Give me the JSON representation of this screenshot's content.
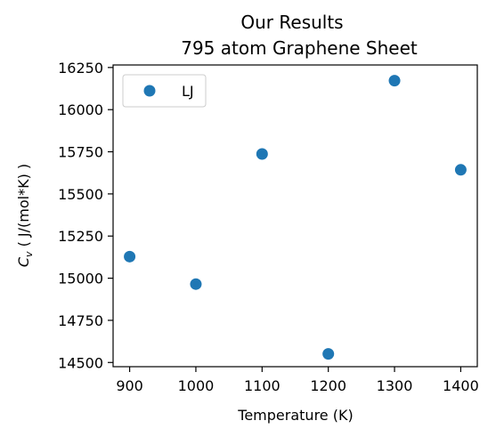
{
  "chart_data": {
    "type": "scatter",
    "title": "Our Results",
    "subtitle": "795 atom Graphene Sheet",
    "xlabel": "Temperature (K)",
    "ylabel": "C_v ( J/(mol*K) )",
    "xlim": [
      875,
      1425
    ],
    "ylim": [
      14475,
      16265
    ],
    "xticks": [
      900,
      1000,
      1100,
      1200,
      1300,
      1400
    ],
    "yticks": [
      14500,
      14750,
      15000,
      15250,
      15500,
      15750,
      16000,
      16250
    ],
    "grid": false,
    "legend_position": "top-left",
    "series": [
      {
        "name": "LJ",
        "color": "#1f77b4",
        "x": [
          900,
          1000,
          1100,
          1200,
          1300,
          1400
        ],
        "y": [
          15128,
          14965,
          15737,
          14551,
          16172,
          15643
        ]
      }
    ]
  }
}
